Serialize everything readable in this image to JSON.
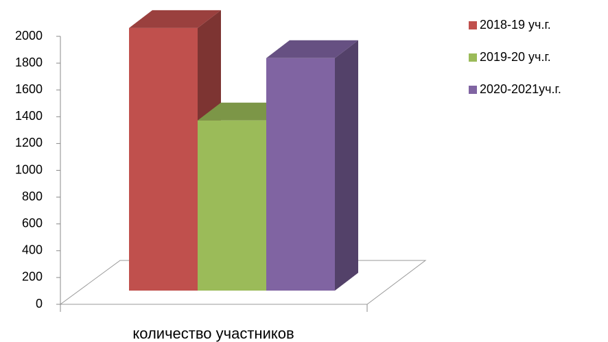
{
  "chart_data": {
    "type": "bar3d",
    "categories": [
      "количество участников"
    ],
    "series": [
      {
        "name": "2018-19 уч.г.",
        "color": "#c0504d",
        "values": [
          1960
        ]
      },
      {
        "name": "2019-20 уч.г.",
        "color": "#9bbb59",
        "values": [
          1270
        ]
      },
      {
        "name": "2020-2021уч.г.",
        "color": "#8064a2",
        "values": [
          1735
        ]
      }
    ],
    "ylim": [
      0,
      2000
    ],
    "yticks": [
      0,
      200,
      400,
      600,
      800,
      1000,
      1200,
      1400,
      1600,
      1800,
      2000
    ],
    "legend": "right"
  }
}
